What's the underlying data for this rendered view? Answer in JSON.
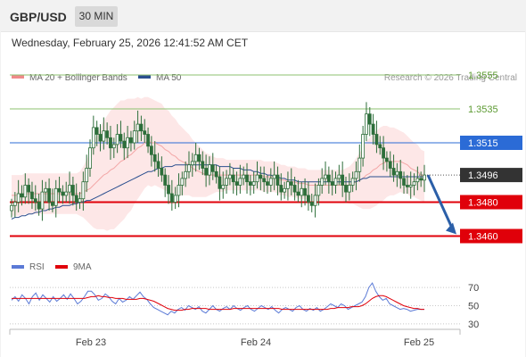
{
  "header": {
    "symbol": "GBP/USD",
    "timeframe": "30 MIN",
    "datetime": "Wednesday, February 25, 2026 12:41:52 AM CET"
  },
  "legend": {
    "bollinger": "MA 20 + Bollinger Bands",
    "ma50": "MA 50",
    "credit": "Research © 2026 Trading Central",
    "rsi": "RSI",
    "ma9": "9MA"
  },
  "colors": {
    "resistance_green": "#8dc26f",
    "pivot_blue": "#2b6bd6",
    "support_red": "#e0000a",
    "last_price_bg": "#333333",
    "bollinger_fill": "#fde3e3",
    "ma20": "#f3a6a6",
    "ma50": "#2b4f8f",
    "candle": "#2d6e3a",
    "arrow": "#2b5fa8",
    "rsi": "#5b7ad6",
    "rsi_ma": "#e0000a"
  },
  "chart_data": [
    {
      "type": "candlestick",
      "title": "",
      "x_ticks": [
        "Feb 23",
        "Feb 24",
        "Feb 25"
      ],
      "y_range": [
        1.3435,
        1.3565
      ],
      "levels": [
        {
          "value": 1.3555,
          "label": "1.3555",
          "kind": "resistance"
        },
        {
          "value": 1.3535,
          "label": "1.3535",
          "kind": "resistance"
        },
        {
          "value": 1.3515,
          "label": "1.3515",
          "kind": "pivot"
        },
        {
          "value": 1.3496,
          "label": "1.3496",
          "kind": "last"
        },
        {
          "value": 1.348,
          "label": "1.3480",
          "kind": "support"
        },
        {
          "value": 1.346,
          "label": "1.3460",
          "kind": "support"
        }
      ],
      "forecast_target": 1.346,
      "close": [
        1.3478,
        1.348,
        1.3485,
        1.3483,
        1.349,
        1.3486,
        1.3482,
        1.348,
        1.3476,
        1.3486,
        1.3488,
        1.348,
        1.3478,
        1.3488,
        1.3486,
        1.3484,
        1.3486,
        1.349,
        1.3484,
        1.348,
        1.3482,
        1.3492,
        1.35,
        1.3512,
        1.3524,
        1.352,
        1.3516,
        1.3522,
        1.3518,
        1.3512,
        1.3514,
        1.352,
        1.3516,
        1.3512,
        1.3518,
        1.3515,
        1.3522,
        1.3526,
        1.3522,
        1.352,
        1.3513,
        1.3508,
        1.3504,
        1.35,
        1.3496,
        1.349,
        1.3485,
        1.348,
        1.3484,
        1.349,
        1.3494,
        1.3498,
        1.3502,
        1.3504,
        1.3508,
        1.3504,
        1.35,
        1.3496,
        1.3502,
        1.3498,
        1.3495,
        1.3488,
        1.349,
        1.3494,
        1.3496,
        1.3492,
        1.349,
        1.3494,
        1.3496,
        1.3492,
        1.349,
        1.3492,
        1.3496,
        1.3494,
        1.3492,
        1.349,
        1.3494,
        1.3496,
        1.349,
        1.3486,
        1.3488,
        1.3492,
        1.349,
        1.3486,
        1.3484,
        1.3488,
        1.3484,
        1.348,
        1.3478,
        1.3484,
        1.349,
        1.3494,
        1.3496,
        1.3492,
        1.349,
        1.3494,
        1.3496,
        1.349,
        1.3486,
        1.349,
        1.3494,
        1.3498,
        1.3506,
        1.352,
        1.3532,
        1.3526,
        1.352,
        1.3514,
        1.3512,
        1.3506,
        1.3504,
        1.35,
        1.3496,
        1.3498,
        1.3494,
        1.349,
        1.3489,
        1.349,
        1.3492,
        1.3494,
        1.3493,
        1.3496
      ],
      "ma20": [
        1.3484,
        1.3484,
        1.3484,
        1.3484,
        1.3485,
        1.3485,
        1.3485,
        1.3485,
        1.3485,
        1.3485,
        1.3485,
        1.3485,
        1.3485,
        1.3485,
        1.3485,
        1.3485,
        1.3485,
        1.3485,
        1.3485,
        1.3485,
        1.3485,
        1.3486,
        1.3487,
        1.3488,
        1.349,
        1.3492,
        1.3494,
        1.3496,
        1.3497,
        1.3499,
        1.35,
        1.3502,
        1.3504,
        1.3505,
        1.3507,
        1.3508,
        1.351,
        1.3512,
        1.3513,
        1.3515,
        1.3516,
        1.3515,
        1.3515,
        1.3514,
        1.3513,
        1.3511,
        1.351,
        1.3508,
        1.3507,
        1.3505,
        1.3504,
        1.3503,
        1.3502,
        1.35,
        1.3499,
        1.3498,
        1.3497,
        1.3496,
        1.3496,
        1.3496,
        1.3496,
        1.3496,
        1.3496,
        1.3496,
        1.3496,
        1.3496,
        1.3496,
        1.3496,
        1.3496,
        1.3496,
        1.3496,
        1.3496,
        1.3496,
        1.3496,
        1.3495,
        1.3495,
        1.3495,
        1.3495,
        1.3494,
        1.3493,
        1.3493,
        1.3492,
        1.3492,
        1.3492,
        1.3491,
        1.3491,
        1.3491,
        1.349,
        1.349,
        1.349,
        1.349,
        1.349,
        1.349,
        1.349,
        1.349,
        1.349,
        1.349,
        1.349,
        1.349,
        1.349,
        1.3491,
        1.3492,
        1.3493,
        1.3494,
        1.3496,
        1.3497,
        1.3499,
        1.35,
        1.3502,
        1.3503,
        1.3504,
        1.3504,
        1.3504,
        1.3504,
        1.3504,
        1.3503,
        1.3502,
        1.35,
        1.3499,
        1.3498,
        1.3496,
        1.3495
      ],
      "bollinger_width": [
        0.0012,
        0.0012,
        0.0012,
        0.0012,
        0.0012,
        0.0012,
        0.0012,
        0.0012,
        0.0012,
        0.0012,
        0.0012,
        0.0012,
        0.0012,
        0.0012,
        0.0012,
        0.0012,
        0.0012,
        0.0012,
        0.0012,
        0.0012,
        0.0013,
        0.0015,
        0.0018,
        0.0021,
        0.0025,
        0.0028,
        0.003,
        0.0032,
        0.0034,
        0.0035,
        0.0036,
        0.0036,
        0.0036,
        0.0035,
        0.0034,
        0.0033,
        0.0031,
        0.003,
        0.0028,
        0.0027,
        0.0026,
        0.0026,
        0.0025,
        0.0025,
        0.0025,
        0.0024,
        0.0024,
        0.0023,
        0.0022,
        0.0021,
        0.002,
        0.0019,
        0.0018,
        0.0017,
        0.0016,
        0.0015,
        0.0014,
        0.0013,
        0.0012,
        0.0011,
        0.001,
        0.001,
        0.001,
        0.0009,
        0.0009,
        0.0009,
        0.0009,
        0.0009,
        0.0009,
        0.0009,
        0.0009,
        0.0009,
        0.0009,
        0.0009,
        0.0009,
        0.0009,
        0.0009,
        0.0009,
        0.0009,
        0.0009,
        0.0009,
        0.0009,
        0.0009,
        0.0009,
        0.0009,
        0.0009,
        0.0009,
        0.0009,
        0.0009,
        0.0009,
        0.0009,
        0.0009,
        0.0009,
        0.0009,
        0.0009,
        0.0009,
        0.0009,
        0.0009,
        0.001,
        0.0011,
        0.0012,
        0.0014,
        0.0016,
        0.0018,
        0.002,
        0.0021,
        0.0022,
        0.0022,
        0.0022,
        0.0022,
        0.0021,
        0.002,
        0.002,
        0.0019,
        0.0018,
        0.0018,
        0.0017,
        0.0017,
        0.0016,
        0.0016,
        0.0015,
        0.0015
      ],
      "ma50": [
        1.347,
        1.3471,
        1.3471,
        1.3472,
        1.3472,
        1.3473,
        1.3473,
        1.3474,
        1.3474,
        1.3475,
        1.3475,
        1.3476,
        1.3476,
        1.3477,
        1.3477,
        1.3478,
        1.3478,
        1.3478,
        1.3479,
        1.3479,
        1.348,
        1.348,
        1.3481,
        1.3481,
        1.3482,
        1.3483,
        1.3484,
        1.3485,
        1.3486,
        1.3487,
        1.3488,
        1.3489,
        1.349,
        1.3491,
        1.3492,
        1.3493,
        1.3494,
        1.3495,
        1.3496,
        1.3497,
        1.3498,
        1.3498,
        1.3499,
        1.35,
        1.35,
        1.3501,
        1.3501,
        1.3501,
        1.3502,
        1.3502,
        1.3502,
        1.3502,
        1.3502,
        1.3502,
        1.3502,
        1.3502,
        1.3502,
        1.3502,
        1.3502,
        1.3502,
        1.3502,
        1.3501,
        1.3501,
        1.3501,
        1.3501,
        1.35,
        1.35,
        1.35,
        1.3499,
        1.3499,
        1.3499,
        1.3498,
        1.3498,
        1.3497,
        1.3497,
        1.3496,
        1.3496,
        1.3495,
        1.3495,
        1.3494,
        1.3494,
        1.3493,
        1.3493,
        1.3493,
        1.3492,
        1.3492,
        1.3492,
        1.3492,
        1.3492,
        1.3492,
        1.3492,
        1.3492,
        1.3492,
        1.3492,
        1.3492,
        1.3492,
        1.3492,
        1.3492,
        1.3492,
        1.3492,
        1.3492,
        1.3492,
        1.3493,
        1.3494,
        1.3494,
        1.3495,
        1.3495,
        1.3495,
        1.3495,
        1.3495,
        1.3495,
        1.3495,
        1.3495,
        1.3495,
        1.3495,
        1.3495,
        1.3495,
        1.3495,
        1.3495,
        1.3495,
        1.3495,
        1.3495
      ],
      "date_breaks": [
        21,
        66,
        114
      ]
    },
    {
      "type": "line",
      "title": "",
      "y_ticks": [
        70,
        50,
        30
      ],
      "y_range": [
        25,
        80
      ],
      "series": [
        {
          "name": "RSI",
          "values": [
            56,
            60,
            55,
            62,
            58,
            52,
            60,
            64,
            56,
            62,
            58,
            54,
            60,
            55,
            58,
            62,
            57,
            63,
            58,
            52,
            55,
            60,
            66,
            66,
            62,
            56,
            58,
            63,
            60,
            55,
            52,
            58,
            54,
            56,
            60,
            57,
            61,
            65,
            60,
            57,
            52,
            48,
            46,
            44,
            42,
            40,
            44,
            42,
            46,
            48,
            45,
            50,
            48,
            46,
            49,
            44,
            42,
            46,
            50,
            46,
            44,
            47,
            49,
            46,
            50,
            47,
            45,
            48,
            50,
            46,
            44,
            47,
            50,
            48,
            46,
            49,
            45,
            42,
            46,
            48,
            46,
            44,
            48,
            50,
            46,
            44,
            47,
            45,
            48,
            44,
            46,
            49,
            52,
            50,
            48,
            52,
            50,
            46,
            48,
            50,
            52,
            54,
            60,
            70,
            75,
            66,
            60,
            56,
            58,
            52,
            50,
            48,
            46,
            47,
            46,
            44,
            45,
            46,
            46,
            46
          ]
        },
        {
          "name": "9MA",
          "values": [
            58,
            58,
            58,
            58,
            58,
            58,
            58,
            58,
            58,
            58,
            58,
            58,
            58,
            58,
            58,
            58,
            58,
            58,
            58,
            58,
            58,
            58,
            59,
            60,
            60,
            61,
            60,
            60,
            59,
            59,
            58,
            58,
            58,
            57,
            57,
            57,
            57,
            58,
            58,
            57,
            56,
            55,
            53,
            51,
            49,
            47,
            46,
            45,
            45,
            45,
            46,
            46,
            47,
            47,
            47,
            47,
            47,
            46,
            46,
            46,
            46,
            46,
            46,
            46,
            47,
            47,
            47,
            47,
            47,
            47,
            47,
            47,
            47,
            47,
            47,
            47,
            47,
            47,
            46,
            46,
            46,
            46,
            46,
            46,
            46,
            46,
            46,
            46,
            46,
            46,
            46,
            46,
            47,
            47,
            48,
            48,
            48,
            48,
            49,
            49,
            49,
            50,
            52,
            55,
            58,
            60,
            61,
            61,
            60,
            58,
            56,
            54,
            52,
            50,
            49,
            48,
            47,
            47,
            46,
            46
          ]
        }
      ]
    }
  ]
}
